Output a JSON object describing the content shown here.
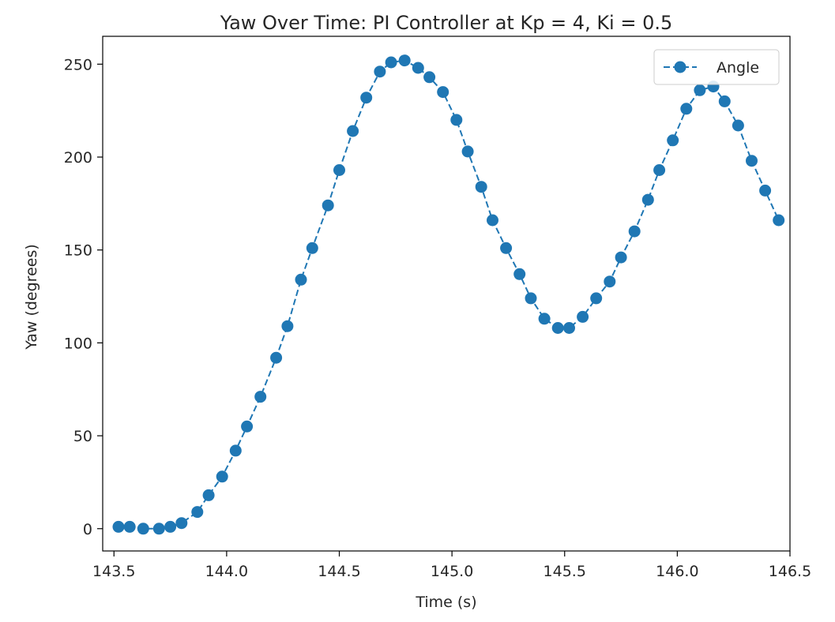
{
  "chart_data": {
    "type": "line",
    "title": "Yaw Over Time: PI Controller at Kp = 4, Ki = 0.5",
    "xlabel": "Time (s)",
    "ylabel": "Yaw (degrees)",
    "xlim": [
      143.45,
      146.5
    ],
    "ylim": [
      -12,
      265
    ],
    "xticks": [
      143.5,
      144.0,
      144.5,
      145.0,
      145.5,
      146.0,
      146.5
    ],
    "xtick_labels": [
      "143.5",
      "144.0",
      "144.5",
      "145.0",
      "145.5",
      "146.0",
      "146.5"
    ],
    "yticks": [
      0,
      50,
      100,
      150,
      200,
      250
    ],
    "ytick_labels": [
      "0",
      "50",
      "100",
      "150",
      "200",
      "250"
    ],
    "grid": false,
    "legend_position": "upper right",
    "color": "#1f77b4",
    "series": [
      {
        "name": "Angle",
        "style": "dashed line with circle markers",
        "x": [
          143.52,
          143.57,
          143.63,
          143.7,
          143.75,
          143.8,
          143.87,
          143.92,
          143.98,
          144.04,
          144.09,
          144.15,
          144.22,
          144.27,
          144.33,
          144.38,
          144.45,
          144.5,
          144.56,
          144.62,
          144.68,
          144.73,
          144.79,
          144.85,
          144.9,
          144.96,
          145.02,
          145.07,
          145.13,
          145.18,
          145.24,
          145.3,
          145.35,
          145.41,
          145.47,
          145.52,
          145.58,
          145.64,
          145.7,
          145.75,
          145.81,
          145.87,
          145.92,
          145.98,
          146.04,
          146.1,
          146.16,
          146.21,
          146.27,
          146.33,
          146.39,
          146.45
        ],
        "values": [
          1,
          1,
          0,
          0,
          1,
          3,
          9,
          18,
          28,
          42,
          55,
          71,
          92,
          109,
          134,
          151,
          174,
          193,
          214,
          232,
          246,
          251,
          252,
          248,
          243,
          235,
          220,
          203,
          184,
          166,
          151,
          137,
          124,
          113,
          108,
          108,
          114,
          124,
          133,
          146,
          160,
          177,
          193,
          209,
          226,
          236,
          238,
          230,
          217,
          198,
          182,
          166
        ]
      }
    ]
  }
}
